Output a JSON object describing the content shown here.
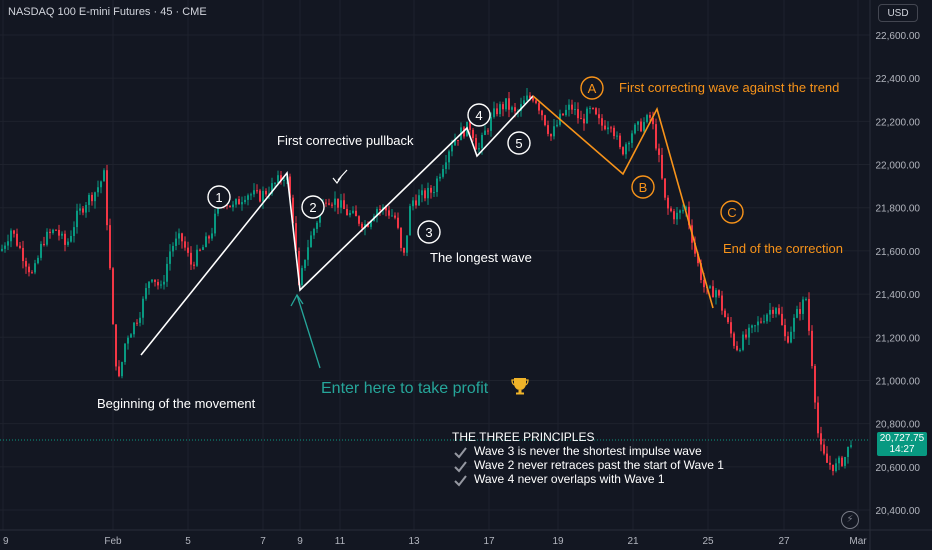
{
  "header": {
    "symbol": "NASDAQ 100 E-mini Futures · 45 · CME",
    "currency": "USD"
  },
  "price_tag": {
    "price": "20,727.75",
    "countdown": "14:27"
  },
  "icons": {
    "bolt": "lightning-icon",
    "check": "checkmark-icon",
    "trophy": "trophy-icon"
  },
  "colors": {
    "bg": "#131722",
    "up": "#089981",
    "down": "#f23645",
    "wave": "#ffffff",
    "correction": "#f7931a",
    "green_text": "#26a69a",
    "axis": "#b2b5be"
  },
  "annotations": {
    "w1": "1",
    "w2": "2",
    "w3": "3",
    "w4": "4",
    "w5": "5",
    "wa": "A",
    "wb": "B",
    "wc": "C",
    "first_pullback": "First corrective pullback",
    "longest_wave": "The longest wave",
    "beginning": "Beginning of the movement",
    "enter_here": "Enter here to take profit",
    "first_correcting": "First correcting wave against the trend",
    "end_correction": "End of the correction",
    "principles_title": "THE THREE PRINCIPLES",
    "principles": [
      "Wave 3 is never the shortest impulse wave",
      "Wave 2 never retraces past the start of Wave 1",
      "Wave 4 never overlaps with Wave 1"
    ]
  },
  "chart_data": {
    "type": "candlestick",
    "title": "NASDAQ 100 E-mini Futures · 45 · CME",
    "y_ticks": [
      22600,
      22400,
      22200,
      22000,
      21800,
      21600,
      21400,
      21200,
      21000,
      20800,
      20600,
      20400
    ],
    "x_tick_labels": [
      "9",
      "Feb",
      "5",
      "7",
      "9",
      "11",
      "13",
      "17",
      "19",
      "21",
      "25",
      "27",
      "Mar"
    ],
    "ylim": [
      20330,
      22690
    ],
    "last_price": 20727.75,
    "grid": true,
    "price_path": [
      [
        0,
        21600
      ],
      [
        10,
        21700
      ],
      [
        20,
        21600
      ],
      [
        32,
        21480
      ],
      [
        42,
        21650
      ],
      [
        55,
        21700
      ],
      [
        65,
        21620
      ],
      [
        75,
        21750
      ],
      [
        85,
        21830
      ],
      [
        95,
        21880
      ],
      [
        103,
        21950
      ],
      [
        108,
        21600
      ],
      [
        113,
        21150
      ],
      [
        118,
        21000
      ],
      [
        125,
        21200
      ],
      [
        132,
        21250
      ],
      [
        140,
        21330
      ],
      [
        150,
        21500
      ],
      [
        160,
        21420
      ],
      [
        170,
        21620
      ],
      [
        180,
        21660
      ],
      [
        190,
        21540
      ],
      [
        200,
        21600
      ],
      [
        210,
        21680
      ],
      [
        220,
        21850
      ],
      [
        232,
        21800
      ],
      [
        245,
        21870
      ],
      [
        258,
        21850
      ],
      [
        272,
        21900
      ],
      [
        285,
        21960
      ],
      [
        292,
        21750
      ],
      [
        298,
        21420
      ],
      [
        305,
        21600
      ],
      [
        315,
        21730
      ],
      [
        325,
        21850
      ],
      [
        335,
        21830
      ],
      [
        345,
        21780
      ],
      [
        355,
        21750
      ],
      [
        365,
        21720
      ],
      [
        375,
        21800
      ],
      [
        385,
        21790
      ],
      [
        395,
        21750
      ],
      [
        402,
        21540
      ],
      [
        410,
        21830
      ],
      [
        420,
        21850
      ],
      [
        432,
        21880
      ],
      [
        440,
        21980
      ],
      [
        450,
        22100
      ],
      [
        460,
        22150
      ],
      [
        470,
        22180
      ],
      [
        477,
        22060
      ],
      [
        485,
        22160
      ],
      [
        495,
        22250
      ],
      [
        505,
        22280
      ],
      [
        515,
        22230
      ],
      [
        525,
        22300
      ],
      [
        533,
        22320
      ],
      [
        540,
        22250
      ],
      [
        550,
        22130
      ],
      [
        560,
        22220
      ],
      [
        570,
        22270
      ],
      [
        580,
        22200
      ],
      [
        590,
        22250
      ],
      [
        600,
        22180
      ],
      [
        610,
        22200
      ],
      [
        620,
        22050
      ],
      [
        630,
        22150
      ],
      [
        640,
        22180
      ],
      [
        650,
        22220
      ],
      [
        657,
        22050
      ],
      [
        665,
        21800
      ],
      [
        675,
        21760
      ],
      [
        685,
        21800
      ],
      [
        695,
        21570
      ],
      [
        705,
        21400
      ],
      [
        715,
        21420
      ],
      [
        725,
        21280
      ],
      [
        735,
        21150
      ],
      [
        745,
        21200
      ],
      [
        755,
        21250
      ],
      [
        765,
        21310
      ],
      [
        775,
        21350
      ],
      [
        785,
        21180
      ],
      [
        795,
        21300
      ],
      [
        805,
        21380
      ],
      [
        812,
        21040
      ],
      [
        818,
        20700
      ],
      [
        825,
        20620
      ],
      [
        835,
        20600
      ],
      [
        845,
        20650
      ],
      [
        850,
        20727
      ]
    ],
    "impulse_waves": [
      {
        "label": "1",
        "price": 21950
      },
      {
        "label": "2",
        "price": 21430
      },
      {
        "label": "3",
        "price": 22200
      },
      {
        "label": "4",
        "price": 22050
      },
      {
        "label": "5",
        "price": 22320
      }
    ],
    "corrective_waves": [
      {
        "label": "A",
        "price": 21950
      },
      {
        "label": "B",
        "price": 22260
      },
      {
        "label": "C",
        "price": 21350
      }
    ]
  }
}
